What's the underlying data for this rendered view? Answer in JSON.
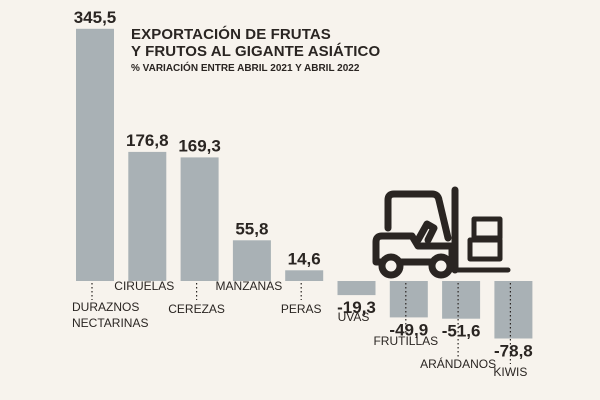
{
  "chart_data": {
    "type": "bar",
    "title_line1": "EXPORTACIÓN DE FRUTAS",
    "title_line2": "Y FRUTOS AL GIGANTE ASIÁTICO",
    "subtitle": "% VARIACIÓN ENTRE ABRIL 2021 Y ABRIL 2022",
    "categories": [
      [
        "DURAZNOS",
        "NECTARINAS"
      ],
      [
        "CIRUELAS"
      ],
      [
        "CEREZAS"
      ],
      [
        "MANZANAS"
      ],
      [
        "PERAS"
      ],
      [
        "UVAS"
      ],
      [
        "FRUTILLAS"
      ],
      [
        "ARÁNDANOS"
      ],
      [
        "KIWIS"
      ]
    ],
    "values": [
      345.5,
      176.8,
      169.3,
      55.8,
      14.6,
      -19.3,
      -49.9,
      -51.6,
      -78.8
    ],
    "value_labels": [
      "345,5",
      "176,8",
      "169,3",
      "55,8",
      "14,6",
      "-19,3",
      "-49,9",
      "-51,6",
      "-78,8"
    ],
    "bar_color": "#a9b1b5",
    "text_color": "#2a2522",
    "background": "#f7f3ed",
    "decoration": "forklift-icon"
  }
}
